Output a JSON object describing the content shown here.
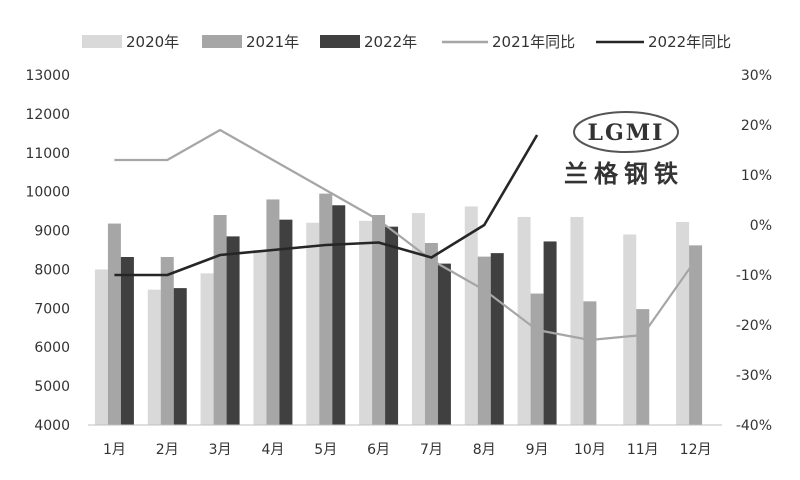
{
  "chart_data": {
    "type": "bar",
    "categories": [
      "1月",
      "2月",
      "3月",
      "4月",
      "5月",
      "6月",
      "7月",
      "8月",
      "9月",
      "10月",
      "11月",
      "12月"
    ],
    "series": [
      {
        "name": "2020年",
        "kind": "bar",
        "axis": "left",
        "color": "#d9d9d9",
        "values": [
          8000,
          7480,
          7900,
          8500,
          9200,
          9250,
          9450,
          9620,
          9350,
          9350,
          8900,
          9220
        ]
      },
      {
        "name": "2021年",
        "kind": "bar",
        "axis": "left",
        "color": "#a6a6a6",
        "values": [
          9180,
          8320,
          9400,
          9800,
          9950,
          9400,
          8680,
          8330,
          7380,
          7180,
          6980,
          8620
        ]
      },
      {
        "name": "2022年",
        "kind": "bar",
        "axis": "left",
        "color": "#404040",
        "values": [
          8320,
          7520,
          8850,
          9280,
          9650,
          9100,
          8150,
          8420,
          8720,
          null,
          null,
          null
        ]
      },
      {
        "name": "2021年同比",
        "kind": "line",
        "axis": "right",
        "color": "#a6a6a6",
        "values": [
          13,
          13,
          19,
          13,
          7,
          1,
          -7,
          -13,
          -21,
          -23,
          -22,
          -7
        ]
      },
      {
        "name": "2022年同比",
        "kind": "line",
        "axis": "right",
        "color": "#262626",
        "values": [
          -10,
          -10,
          -6,
          -5,
          -4,
          -3.5,
          -6.5,
          0,
          18,
          null,
          null,
          null
        ]
      }
    ],
    "yleft": {
      "min": 4000,
      "max": 13000,
      "step": 1000,
      "ticks": [
        "4000",
        "5000",
        "6000",
        "7000",
        "8000",
        "9000",
        "10000",
        "11000",
        "12000",
        "13000"
      ]
    },
    "yright": {
      "min": -40,
      "max": 30,
      "step": 10,
      "ticks": [
        "-40%",
        "-30%",
        "-20%",
        "-10%",
        "0%",
        "10%",
        "20%",
        "30%"
      ]
    },
    "legend_position": "top",
    "grid": false
  },
  "watermark": {
    "latin": "LGMI",
    "chinese": "兰格钢铁"
  }
}
